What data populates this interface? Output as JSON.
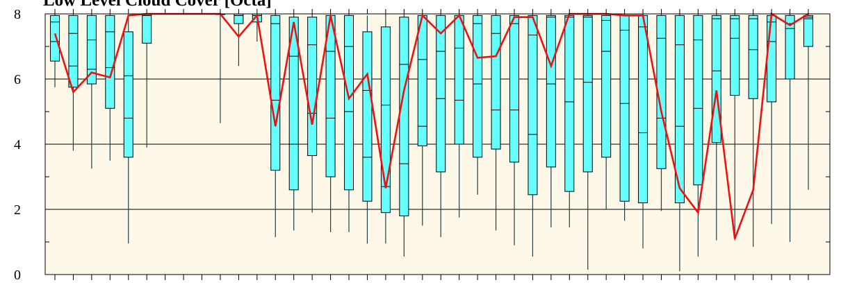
{
  "chart_data": {
    "type": "box",
    "title": "Low Level Cloud Cover [Octa]",
    "ylim": [
      0,
      8
    ],
    "yticks": [
      "0",
      "2",
      "4",
      "6",
      "8"
    ],
    "grid": true,
    "colors": {
      "background": "#fdf8e8",
      "box": "#66ffff",
      "line": "#ee1111",
      "whisker": "#1f3f44",
      "grid": "#000000"
    },
    "boxes": [
      {
        "min": 5.75,
        "q1": 6.55,
        "median": 7.15,
        "mean_mark": 7.75,
        "q3": 7.95,
        "max": 8.0
      },
      {
        "min": 3.8,
        "q1": 5.75,
        "median": 6.4,
        "mean_mark": 7.4,
        "q3": 7.95,
        "max": 8.0
      },
      {
        "min": 3.25,
        "q1": 5.85,
        "median": 6.3,
        "mean_mark": 7.2,
        "q3": 7.95,
        "max": 8.0
      },
      {
        "min": 3.5,
        "q1": 5.1,
        "median": 6.35,
        "mean_mark": 7.45,
        "q3": 7.95,
        "max": 8.0
      },
      {
        "min": 0.95,
        "q1": 3.6,
        "median": 4.8,
        "mean_mark": 6.1,
        "q3": 7.45,
        "max": 7.9
      },
      {
        "min": 3.9,
        "q1": 7.1,
        "median": 7.95,
        "mean_mark": 7.95,
        "q3": 8.0,
        "max": 8.0
      },
      null,
      null,
      null,
      {
        "min": 4.65,
        "q1": 8.0,
        "median": 8.0,
        "mean_mark": 8.0,
        "q3": 8.0,
        "max": 8.0
      },
      {
        "min": 6.4,
        "q1": 7.7,
        "median": 7.95,
        "mean_mark": 7.95,
        "q3": 8.0,
        "max": 8.0
      },
      {
        "min": 7.15,
        "q1": 7.75,
        "median": 7.95,
        "mean_mark": 7.95,
        "q3": 8.0,
        "max": 8.0
      },
      {
        "min": 1.15,
        "q1": 3.2,
        "median": 5.35,
        "mean_mark": 7.7,
        "q3": 7.95,
        "max": 8.0
      },
      {
        "min": 1.35,
        "q1": 2.6,
        "median": 4.0,
        "mean_mark": 6.7,
        "q3": 7.9,
        "max": 8.0
      },
      {
        "min": 1.9,
        "q1": 3.65,
        "median": 4.95,
        "mean_mark": 7.05,
        "q3": 7.9,
        "max": 8.0
      },
      {
        "min": 1.3,
        "q1": 3.0,
        "median": 4.8,
        "mean_mark": 6.85,
        "q3": 7.95,
        "max": 8.0
      },
      {
        "min": 1.3,
        "q1": 2.6,
        "median": 5.0,
        "mean_mark": 7.0,
        "q3": 7.95,
        "max": 8.0
      },
      {
        "min": 0.95,
        "q1": 2.25,
        "median": 3.6,
        "mean_mark": 5.65,
        "q3": 7.45,
        "max": 7.95
      },
      {
        "min": 0.95,
        "q1": 1.9,
        "median": 2.7,
        "mean_mark": 5.2,
        "q3": 7.6,
        "max": 8.0
      },
      {
        "min": 0.55,
        "q1": 1.8,
        "median": 3.4,
        "mean_mark": 6.45,
        "q3": 7.9,
        "max": 8.0
      },
      {
        "min": 1.5,
        "q1": 3.95,
        "median": 4.55,
        "mean_mark": 6.6,
        "q3": 7.95,
        "max": 8.0
      },
      {
        "min": 1.15,
        "q1": 3.15,
        "median": 5.4,
        "mean_mark": 6.85,
        "q3": 7.95,
        "max": 8.0
      },
      {
        "min": 1.75,
        "q1": 4.0,
        "median": 5.35,
        "mean_mark": 6.95,
        "q3": 7.95,
        "max": 8.0
      },
      {
        "min": 2.45,
        "q1": 3.6,
        "median": 5.85,
        "mean_mark": 7.7,
        "q3": 7.95,
        "max": 8.0
      },
      {
        "min": 1.35,
        "q1": 3.85,
        "median": 5.05,
        "mean_mark": 7.4,
        "q3": 7.95,
        "max": 8.0
      },
      {
        "min": 0.9,
        "q1": 3.45,
        "median": 5.05,
        "mean_mark": 7.7,
        "q3": 7.95,
        "max": 8.0
      },
      {
        "min": 0.55,
        "q1": 2.45,
        "median": 4.3,
        "mean_mark": 7.35,
        "q3": 7.95,
        "max": 8.0
      },
      {
        "min": 1.45,
        "q1": 3.3,
        "median": 5.85,
        "mean_mark": 7.9,
        "q3": 7.95,
        "max": 8.0
      },
      {
        "min": 1.45,
        "q1": 2.55,
        "median": 5.3,
        "mean_mark": 7.9,
        "q3": 7.95,
        "max": 8.0
      },
      {
        "min": 0.15,
        "q1": 3.15,
        "median": 5.9,
        "mean_mark": 7.9,
        "q3": 7.95,
        "max": 8.0
      },
      {
        "min": 2.0,
        "q1": 3.6,
        "median": 6.85,
        "mean_mark": 7.8,
        "q3": 7.95,
        "max": 8.0
      },
      {
        "min": 1.65,
        "q1": 2.25,
        "median": 5.25,
        "mean_mark": 7.5,
        "q3": 7.95,
        "max": 8.0
      },
      {
        "min": 0.8,
        "q1": 2.2,
        "median": 4.35,
        "mean_mark": 7.6,
        "q3": 7.95,
        "max": 8.0
      },
      {
        "min": 1.95,
        "q1": 3.25,
        "median": 4.8,
        "mean_mark": 7.25,
        "q3": 7.95,
        "max": 8.0
      },
      {
        "min": 0.1,
        "q1": 2.2,
        "median": 4.55,
        "mean_mark": 7.05,
        "q3": 7.95,
        "max": 8.0
      },
      {
        "min": 0.55,
        "q1": 2.75,
        "median": 5.1,
        "mean_mark": 7.2,
        "q3": 7.95,
        "max": 8.0
      },
      {
        "min": 1.05,
        "q1": 4.05,
        "median": 6.25,
        "mean_mark": 7.85,
        "q3": 7.95,
        "max": 8.0
      },
      {
        "min": 1.05,
        "q1": 5.5,
        "median": 7.25,
        "mean_mark": 7.85,
        "q3": 7.95,
        "max": 8.0
      },
      {
        "min": 0.85,
        "q1": 5.4,
        "median": 6.9,
        "mean_mark": 7.85,
        "q3": 7.95,
        "max": 8.0
      },
      {
        "min": 1.55,
        "q1": 5.3,
        "median": 7.15,
        "mean_mark": 7.75,
        "q3": 7.95,
        "max": 8.0
      },
      {
        "min": 1.0,
        "q1": 6.0,
        "median": 7.55,
        "mean_mark": 7.7,
        "q3": 7.95,
        "max": 8.0
      },
      {
        "min": 2.6,
        "q1": 7.0,
        "median": 7.85,
        "mean_mark": 7.9,
        "q3": 7.95,
        "max": 8.0
      }
    ],
    "line": [
      7.4,
      5.6,
      6.2,
      6.05,
      7.95,
      8.0,
      8.0,
      8.0,
      8.0,
      8.0,
      7.3,
      7.95,
      4.55,
      7.75,
      4.6,
      7.95,
      5.4,
      6.15,
      2.65,
      5.65,
      7.95,
      7.4,
      7.95,
      6.65,
      6.7,
      7.9,
      7.9,
      6.4,
      8.0,
      8.0,
      8.0,
      7.95,
      7.95,
      5.0,
      2.65,
      1.9,
      5.65,
      1.1,
      2.6,
      8.0,
      7.65,
      8.0
    ]
  }
}
